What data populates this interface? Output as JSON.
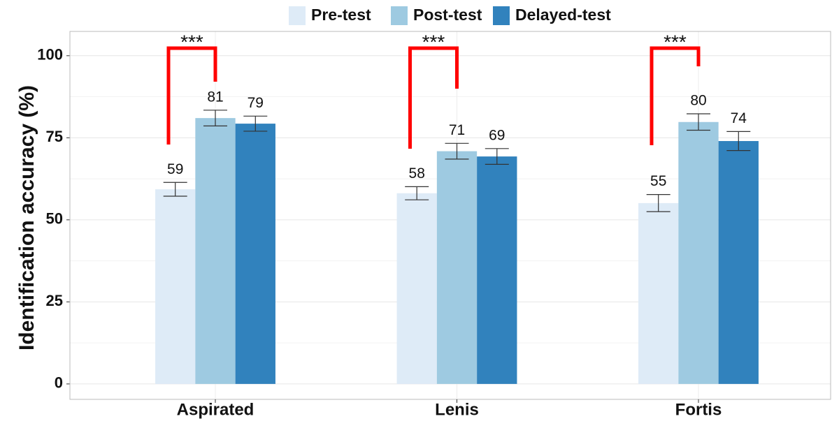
{
  "chart_data": {
    "type": "bar",
    "ylabel": "Identification accuracy (%)",
    "categories": [
      "Aspirated",
      "Lenis",
      "Fortis"
    ],
    "series": [
      {
        "name": "Pre-test",
        "color": "#deebf7",
        "values": [
          59.3,
          58.1,
          55.1
        ],
        "value_labels": [
          "59",
          "58",
          "55"
        ],
        "errors": [
          2.1,
          2.0,
          2.6
        ]
      },
      {
        "name": "Post-test",
        "color": "#9ecae1",
        "values": [
          81.0,
          70.9,
          79.8
        ],
        "value_labels": [
          "81",
          "71",
          "80"
        ],
        "errors": [
          2.4,
          2.4,
          2.5
        ]
      },
      {
        "name": "Delayed-test",
        "color": "#3182bd",
        "values": [
          79.3,
          69.3,
          74.0
        ],
        "value_labels": [
          "79",
          "69",
          "74"
        ],
        "errors": [
          2.3,
          2.4,
          2.9
        ]
      }
    ],
    "ylim": [
      -4.7,
      107.4
    ],
    "yticks": [
      0,
      25,
      50,
      75,
      100
    ],
    "grid": true,
    "legend": "top",
    "annotations": [
      "***",
      "***",
      "***"
    ],
    "annotation_color": "#ff0000"
  }
}
